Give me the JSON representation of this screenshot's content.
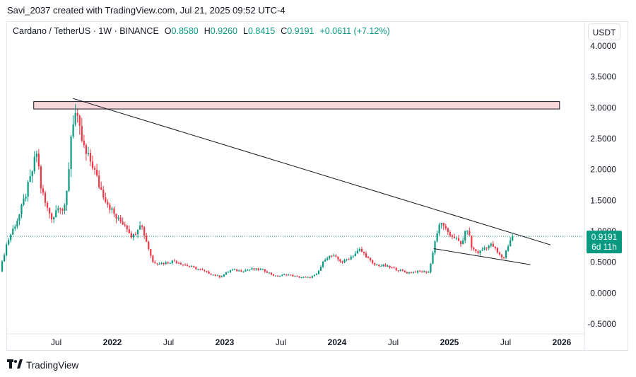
{
  "header": {
    "caption": "Savi_2037 created with TradingView.com, Jul 21, 2025 09:52 UTC-4"
  },
  "legend": {
    "symbol": "Cardano / TetherUS · 1W · BINANCE",
    "open_label": "O",
    "open": "0.8580",
    "high_label": "H",
    "high": "0.9260",
    "low_label": "L",
    "low": "0.8415",
    "close_label": "C",
    "close": "0.9191",
    "change": "+0.0611 (+7.12%)"
  },
  "currency_button": "USDT",
  "price_tag": {
    "price": "0.9191",
    "countdown": "6d 11h"
  },
  "footer": {
    "brand": "TradingView"
  },
  "colors": {
    "up": "#089981",
    "down": "#f23645",
    "zone_fill": "#f8d7da",
    "line": "#131722"
  },
  "chart_data": {
    "type": "candlestick",
    "y_axis": {
      "min": -0.5,
      "max": 4.0,
      "ticks": [
        "4.0000",
        "3.5000",
        "3.0000",
        "2.5000",
        "2.0000",
        "1.5000",
        "1.0000",
        "0.5000",
        "0.0000",
        "-0.5000"
      ]
    },
    "x_axis": {
      "tick_labels": [
        "Jul",
        "2022",
        "Jul",
        "2023",
        "Jul",
        "2024",
        "Jul",
        "2025",
        "Jul",
        "2026"
      ]
    },
    "last_price": 0.9191,
    "price_path": [
      {
        "t": 2021.0,
        "p": 0.35
      },
      {
        "t": 2021.06,
        "p": 0.8
      },
      {
        "t": 2021.12,
        "p": 1.05
      },
      {
        "t": 2021.18,
        "p": 1.3
      },
      {
        "t": 2021.27,
        "p": 1.85
      },
      {
        "t": 2021.33,
        "p": 2.3
      },
      {
        "t": 2021.36,
        "p": 1.75
      },
      {
        "t": 2021.41,
        "p": 1.4
      },
      {
        "t": 2021.47,
        "p": 1.2
      },
      {
        "t": 2021.52,
        "p": 1.45
      },
      {
        "t": 2021.57,
        "p": 1.3
      },
      {
        "t": 2021.6,
        "p": 1.7
      },
      {
        "t": 2021.64,
        "p": 2.75
      },
      {
        "t": 2021.67,
        "p": 2.9
      },
      {
        "t": 2021.71,
        "p": 2.6
      },
      {
        "t": 2021.76,
        "p": 2.25
      },
      {
        "t": 2021.82,
        "p": 2.1
      },
      {
        "t": 2021.88,
        "p": 1.75
      },
      {
        "t": 2021.96,
        "p": 1.45
      },
      {
        "t": 2022.04,
        "p": 1.2
      },
      {
        "t": 2022.12,
        "p": 1.1
      },
      {
        "t": 2022.18,
        "p": 0.9
      },
      {
        "t": 2022.25,
        "p": 1.15
      },
      {
        "t": 2022.31,
        "p": 0.8
      },
      {
        "t": 2022.36,
        "p": 0.5
      },
      {
        "t": 2022.45,
        "p": 0.48
      },
      {
        "t": 2022.55,
        "p": 0.52
      },
      {
        "t": 2022.65,
        "p": 0.45
      },
      {
        "t": 2022.75,
        "p": 0.4
      },
      {
        "t": 2022.85,
        "p": 0.33
      },
      {
        "t": 2022.96,
        "p": 0.26
      },
      {
        "t": 2023.05,
        "p": 0.37
      },
      {
        "t": 2023.15,
        "p": 0.36
      },
      {
        "t": 2023.25,
        "p": 0.39
      },
      {
        "t": 2023.35,
        "p": 0.37
      },
      {
        "t": 2023.45,
        "p": 0.27
      },
      {
        "t": 2023.55,
        "p": 0.3
      },
      {
        "t": 2023.65,
        "p": 0.26
      },
      {
        "t": 2023.75,
        "p": 0.25
      },
      {
        "t": 2023.82,
        "p": 0.3
      },
      {
        "t": 2023.9,
        "p": 0.58
      },
      {
        "t": 2023.96,
        "p": 0.6
      },
      {
        "t": 2024.05,
        "p": 0.5
      },
      {
        "t": 2024.12,
        "p": 0.58
      },
      {
        "t": 2024.2,
        "p": 0.7
      },
      {
        "t": 2024.26,
        "p": 0.6
      },
      {
        "t": 2024.32,
        "p": 0.46
      },
      {
        "t": 2024.42,
        "p": 0.44
      },
      {
        "t": 2024.52,
        "p": 0.39
      },
      {
        "t": 2024.62,
        "p": 0.33
      },
      {
        "t": 2024.72,
        "p": 0.35
      },
      {
        "t": 2024.82,
        "p": 0.34
      },
      {
        "t": 2024.86,
        "p": 0.75
      },
      {
        "t": 2024.9,
        "p": 1.05
      },
      {
        "t": 2024.94,
        "p": 1.15
      },
      {
        "t": 2024.98,
        "p": 0.95
      },
      {
        "t": 2025.04,
        "p": 0.92
      },
      {
        "t": 2025.1,
        "p": 0.78
      },
      {
        "t": 2025.16,
        "p": 1.05
      },
      {
        "t": 2025.2,
        "p": 0.72
      },
      {
        "t": 2025.26,
        "p": 0.65
      },
      {
        "t": 2025.32,
        "p": 0.75
      },
      {
        "t": 2025.38,
        "p": 0.78
      },
      {
        "t": 2025.44,
        "p": 0.62
      },
      {
        "t": 2025.48,
        "p": 0.56
      },
      {
        "t": 2025.52,
        "p": 0.76
      },
      {
        "t": 2025.555,
        "p": 0.9191
      }
    ],
    "annotations": {
      "resistance_zone": {
        "price_low": 2.98,
        "price_high": 3.1,
        "t_start": 2021.3,
        "t_end": 2025.98
      },
      "descending_trendline": [
        {
          "t": 2021.65,
          "p": 3.15
        },
        {
          "t": 2025.9,
          "p": 0.78
        }
      ],
      "lower_channel_line": [
        {
          "t": 2024.86,
          "p": 0.72
        },
        {
          "t": 2025.72,
          "p": 0.46
        }
      ]
    }
  }
}
